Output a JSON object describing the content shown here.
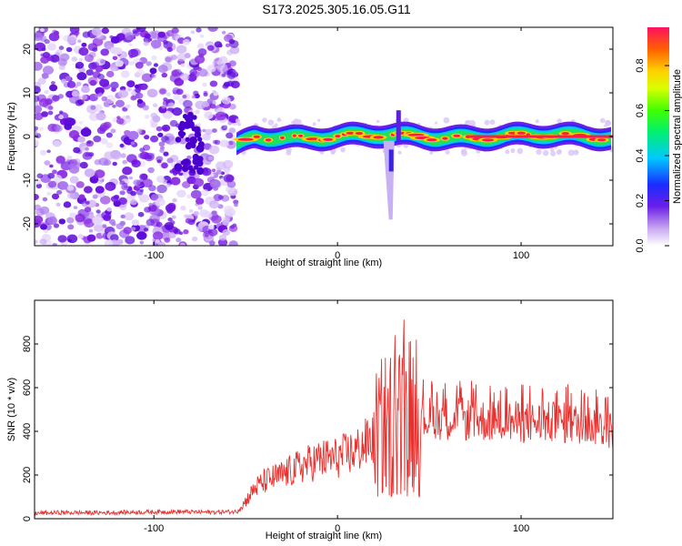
{
  "title": "S173.2025.305.16.05.G11",
  "chart_data": [
    {
      "type": "heatmap",
      "xlabel": "Height of straight line (km)",
      "ylabel": "Frequency (Hz)",
      "xlim": [
        -165,
        150
      ],
      "ylim": [
        -25,
        25
      ],
      "xticks": [
        -100,
        0,
        100
      ],
      "yticks": [
        -20,
        -10,
        0,
        10,
        20
      ],
      "colorbar": {
        "label": "Normalized spectral amplitude",
        "range": [
          0,
          0.97
        ],
        "ticks": [
          0.0,
          0.2,
          0.4,
          0.6,
          0.8
        ],
        "colormap": "rainbow"
      },
      "description_values": {
        "noise_region_x": [
          -165,
          -55
        ],
        "signal_start_x": -55,
        "signal_frequency_hz": 0,
        "feature_x": [
          25,
          33
        ]
      }
    },
    {
      "type": "line",
      "xlabel": "Height of straight line (km)",
      "ylabel": "SNR (10 * v/v)",
      "xlim": [
        -165,
        150
      ],
      "ylim": [
        0,
        1000
      ],
      "xticks": [
        -100,
        0,
        100
      ],
      "yticks": [
        0,
        200,
        400,
        600,
        800
      ],
      "series": [
        {
          "color": "#e8302e",
          "points": [
            [
              -165,
              25
            ],
            [
              -150,
              28
            ],
            [
              -130,
              27
            ],
            [
              -110,
              30
            ],
            [
              -90,
              32
            ],
            [
              -70,
              30
            ],
            [
              -55,
              32
            ],
            [
              -50,
              80
            ],
            [
              -45,
              140
            ],
            [
              -40,
              170
            ],
            [
              -30,
              200
            ],
            [
              -20,
              240
            ],
            [
              -10,
              270
            ],
            [
              0,
              280
            ],
            [
              10,
              310
            ],
            [
              20,
              370
            ],
            [
              25,
              420
            ],
            [
              30,
              440
            ],
            [
              35,
              460
            ],
            [
              40,
              480
            ],
            [
              45,
              460
            ],
            [
              50,
              460
            ],
            [
              60,
              460
            ],
            [
              70,
              455
            ],
            [
              80,
              450
            ],
            [
              90,
              450
            ],
            [
              100,
              440
            ],
            [
              110,
              440
            ],
            [
              120,
              440
            ],
            [
              130,
              435
            ],
            [
              140,
              430
            ],
            [
              150,
              400
            ]
          ]
        }
      ]
    }
  ],
  "colors": {
    "noise": "#8a2be2",
    "line": "#e8302e"
  }
}
